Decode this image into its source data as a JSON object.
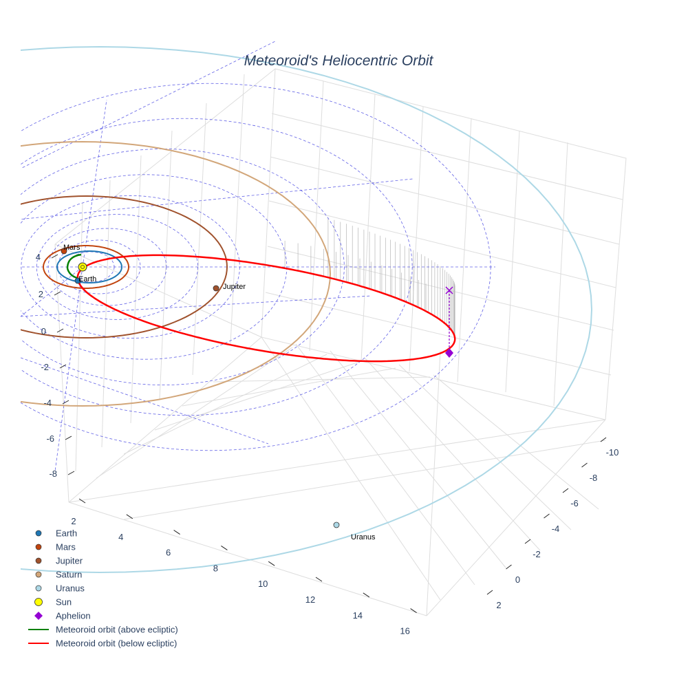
{
  "chart_data": {
    "type": "scatter3d",
    "title": "Meteoroid's Heliocentric Orbit",
    "axes": {
      "x": {
        "ticks": [
          2,
          4,
          6,
          8,
          10,
          12,
          14,
          16
        ]
      },
      "y": {
        "ticks": [
          -10,
          -8,
          -6,
          -4,
          -2,
          0,
          2
        ]
      },
      "z": {
        "ticks": [
          4,
          2,
          0,
          -2,
          -4,
          -6,
          -8
        ]
      }
    },
    "bodies": [
      {
        "name": "Earth",
        "label": "Earth",
        "color": "#1f77b4"
      },
      {
        "name": "Mars",
        "label": "Mars",
        "color": "#c1440e"
      },
      {
        "name": "Jupiter",
        "label": "Jupiter",
        "color": "#a0522d"
      },
      {
        "name": "Saturn",
        "label": "",
        "color": "#d2a679"
      },
      {
        "name": "Uranus",
        "label": "Uranus",
        "color": "#add8e6"
      }
    ],
    "sun": {
      "name": "Sun",
      "color": "#ffff00"
    },
    "aphelion": {
      "name": "Aphelion",
      "color": "#9400d3",
      "marker": "diamond"
    },
    "series": [
      {
        "name": "Meteoroid orbit (above ecliptic)",
        "color": "#008000"
      },
      {
        "name": "Meteoroid orbit (below ecliptic)",
        "color": "#ff0000"
      }
    ],
    "orbit_colors": {
      "earth": "#1f77b4",
      "mars": "#c1440e",
      "jupiter": "#a0522d",
      "saturn": "#d2a679",
      "uranus": "#add8e6",
      "grid": "#3a3ae0"
    },
    "legend": [
      {
        "label": "Earth",
        "color": "#1f77b4",
        "symbol": "circle"
      },
      {
        "label": "Mars",
        "color": "#c1440e",
        "symbol": "circle"
      },
      {
        "label": "Jupiter",
        "color": "#a0522d",
        "symbol": "circle"
      },
      {
        "label": "Saturn",
        "color": "#d2a679",
        "symbol": "circle"
      },
      {
        "label": "Uranus",
        "color": "#add8e6",
        "symbol": "circle"
      },
      {
        "label": "Sun",
        "color": "#ffff00",
        "symbol": "sun"
      },
      {
        "label": "Aphelion",
        "color": "#9400d3",
        "symbol": "diamond"
      },
      {
        "label": "Meteoroid orbit (above ecliptic)",
        "color": "#008000",
        "symbol": "line"
      },
      {
        "label": "Meteoroid orbit (below ecliptic)",
        "color": "#ff0000",
        "symbol": "line"
      }
    ]
  }
}
